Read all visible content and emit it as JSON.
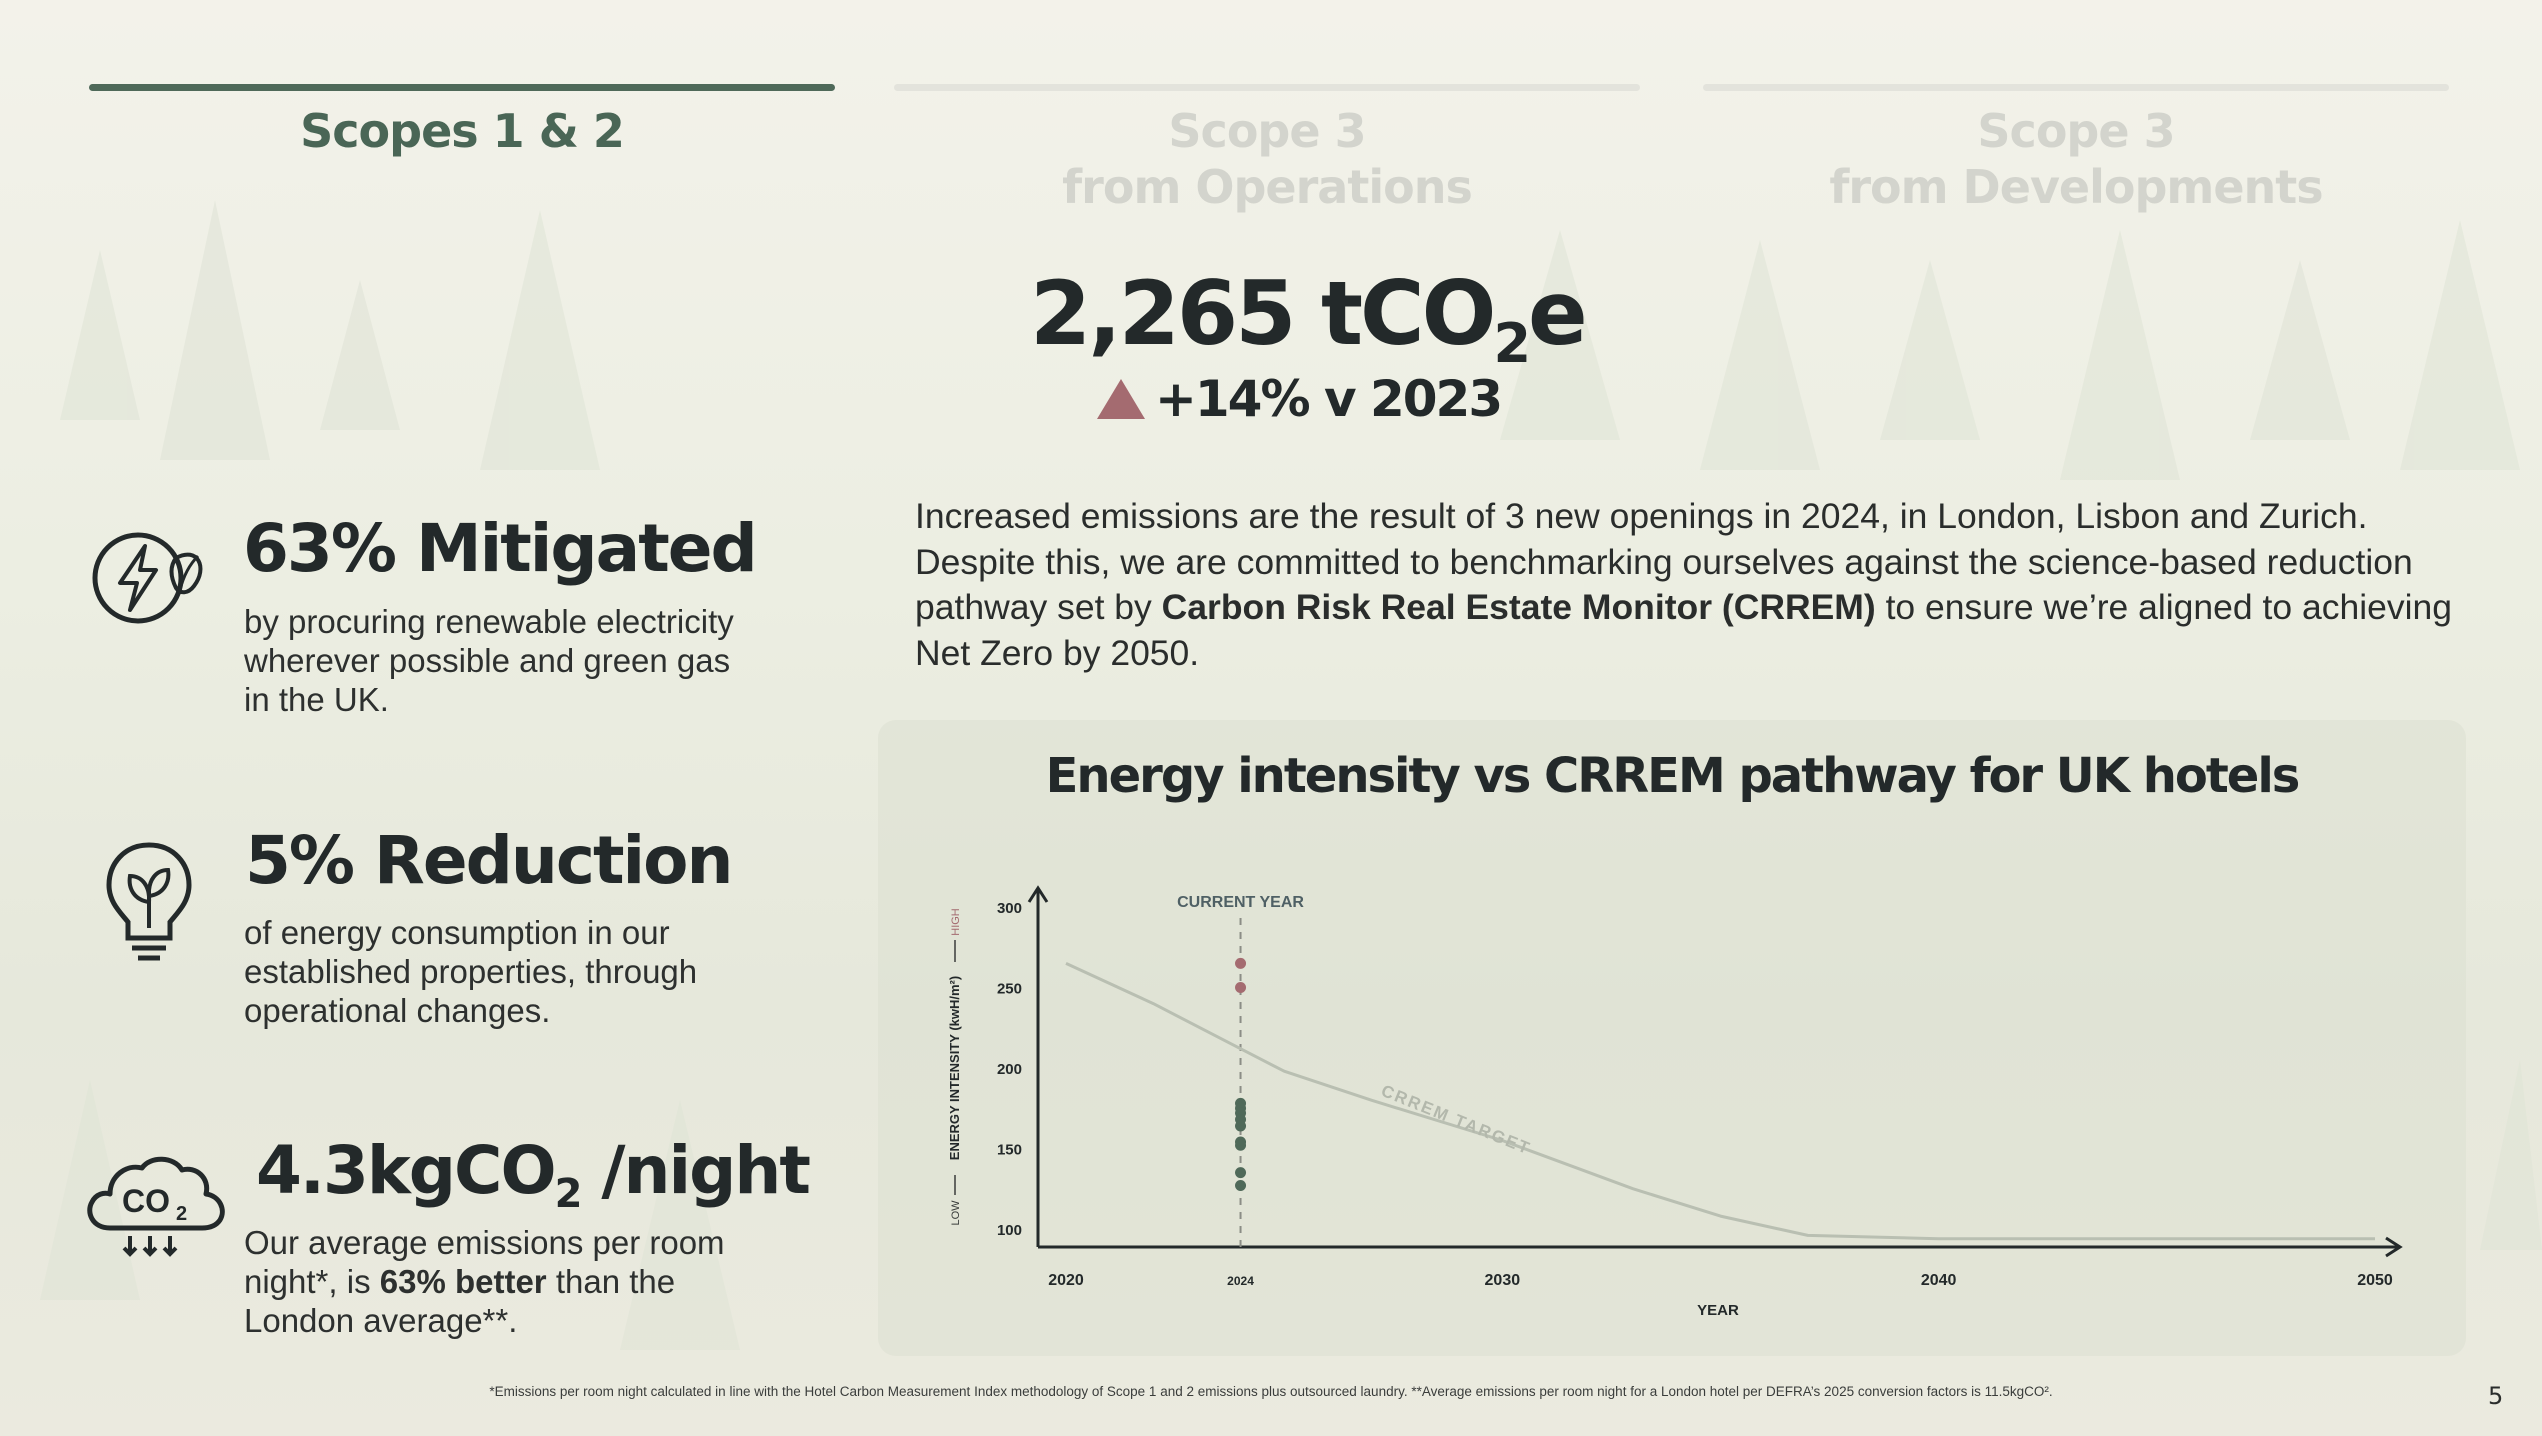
{
  "tabs": [
    {
      "label": "Scopes 1 & 2",
      "active": true
    },
    {
      "label": "Scope 3\nfrom Operations",
      "active": false
    },
    {
      "label": "Scope 3\nfrom Developments",
      "active": false
    }
  ],
  "headline": {
    "value": "2,265 tCO",
    "subscript": "2",
    "suffix": "e"
  },
  "change": {
    "text": "+14% v 2023",
    "direction": "up",
    "color": "#a46b70"
  },
  "paragraph": {
    "part1": "Increased emissions are the result of 3 new openings in 2024, in London, Lisbon and Zurich. Despite this, we are committed to benchmarking ourselves against the science-based reduction pathway set by ",
    "bold": "Carbon Risk Real Estate Monitor (CRREM)",
    "part2": " to ensure we’re aligned to achieving Net Zero by 2050."
  },
  "stats": [
    {
      "icon": "renewable-energy-icon",
      "title": "63% Mitigated",
      "description": "by procuring renewable electricity wherever possible and green gas in the UK."
    },
    {
      "icon": "lightbulb-leaf-icon",
      "title": "5% Reduction",
      "description": "of energy consumption in our established properties, through operational changes."
    },
    {
      "icon": "co2-cloud-icon",
      "title_prefix": "4.3kgCO",
      "title_sub": "2",
      "title_suffix": " /night",
      "desc_part1": "Our average emissions per room night*, is ",
      "desc_bold": "63% better",
      "desc_part2": " than the London average**."
    }
  ],
  "chart_data": {
    "type": "scatter",
    "title": "Energy intensity vs CRREM pathway for UK hotels",
    "xlabel": "YEAR",
    "ylabel": "ENERGY INTENSITY (kwH/m²)",
    "ylabel_low": "LOW",
    "ylabel_high": "HIGH",
    "x_ticks": [
      2020,
      2024,
      2030,
      2040,
      2050
    ],
    "y_ticks": [
      100,
      150,
      200,
      250,
      300
    ],
    "xlim": [
      2020,
      2050.5
    ],
    "ylim": [
      88,
      310
    ],
    "current_year": {
      "x": 2024,
      "label": "CURRENT YEAR"
    },
    "crrem_target": {
      "label": "CRREM TARGET",
      "x": [
        2020,
        2022,
        2024,
        2025,
        2027,
        2030,
        2033,
        2035,
        2037,
        2040,
        2045,
        2050
      ],
      "y": [
        265,
        240,
        212,
        198,
        180,
        155,
        125,
        108,
        96,
        94,
        94,
        94
      ]
    },
    "series": [
      {
        "color": "#a46b70",
        "x": [
          2024,
          2024
        ],
        "y": [
          265,
          250
        ]
      },
      {
        "color": "#4f6959",
        "x": [
          2024,
          2024,
          2024,
          2024,
          2024,
          2024,
          2024,
          2024,
          2024
        ],
        "y": [
          178,
          175,
          172,
          168,
          164,
          154,
          152,
          135,
          127
        ]
      }
    ]
  },
  "footnote": "*Emissions per room night calculated in line with the Hotel Carbon Measurement Index methodology of Scope 1 and 2 emissions plus outsourced laundry. **Average emissions per room night for a London hotel per DEFRA’s 2025 conversion factors is 11.5kgCO².",
  "page_number": "5"
}
